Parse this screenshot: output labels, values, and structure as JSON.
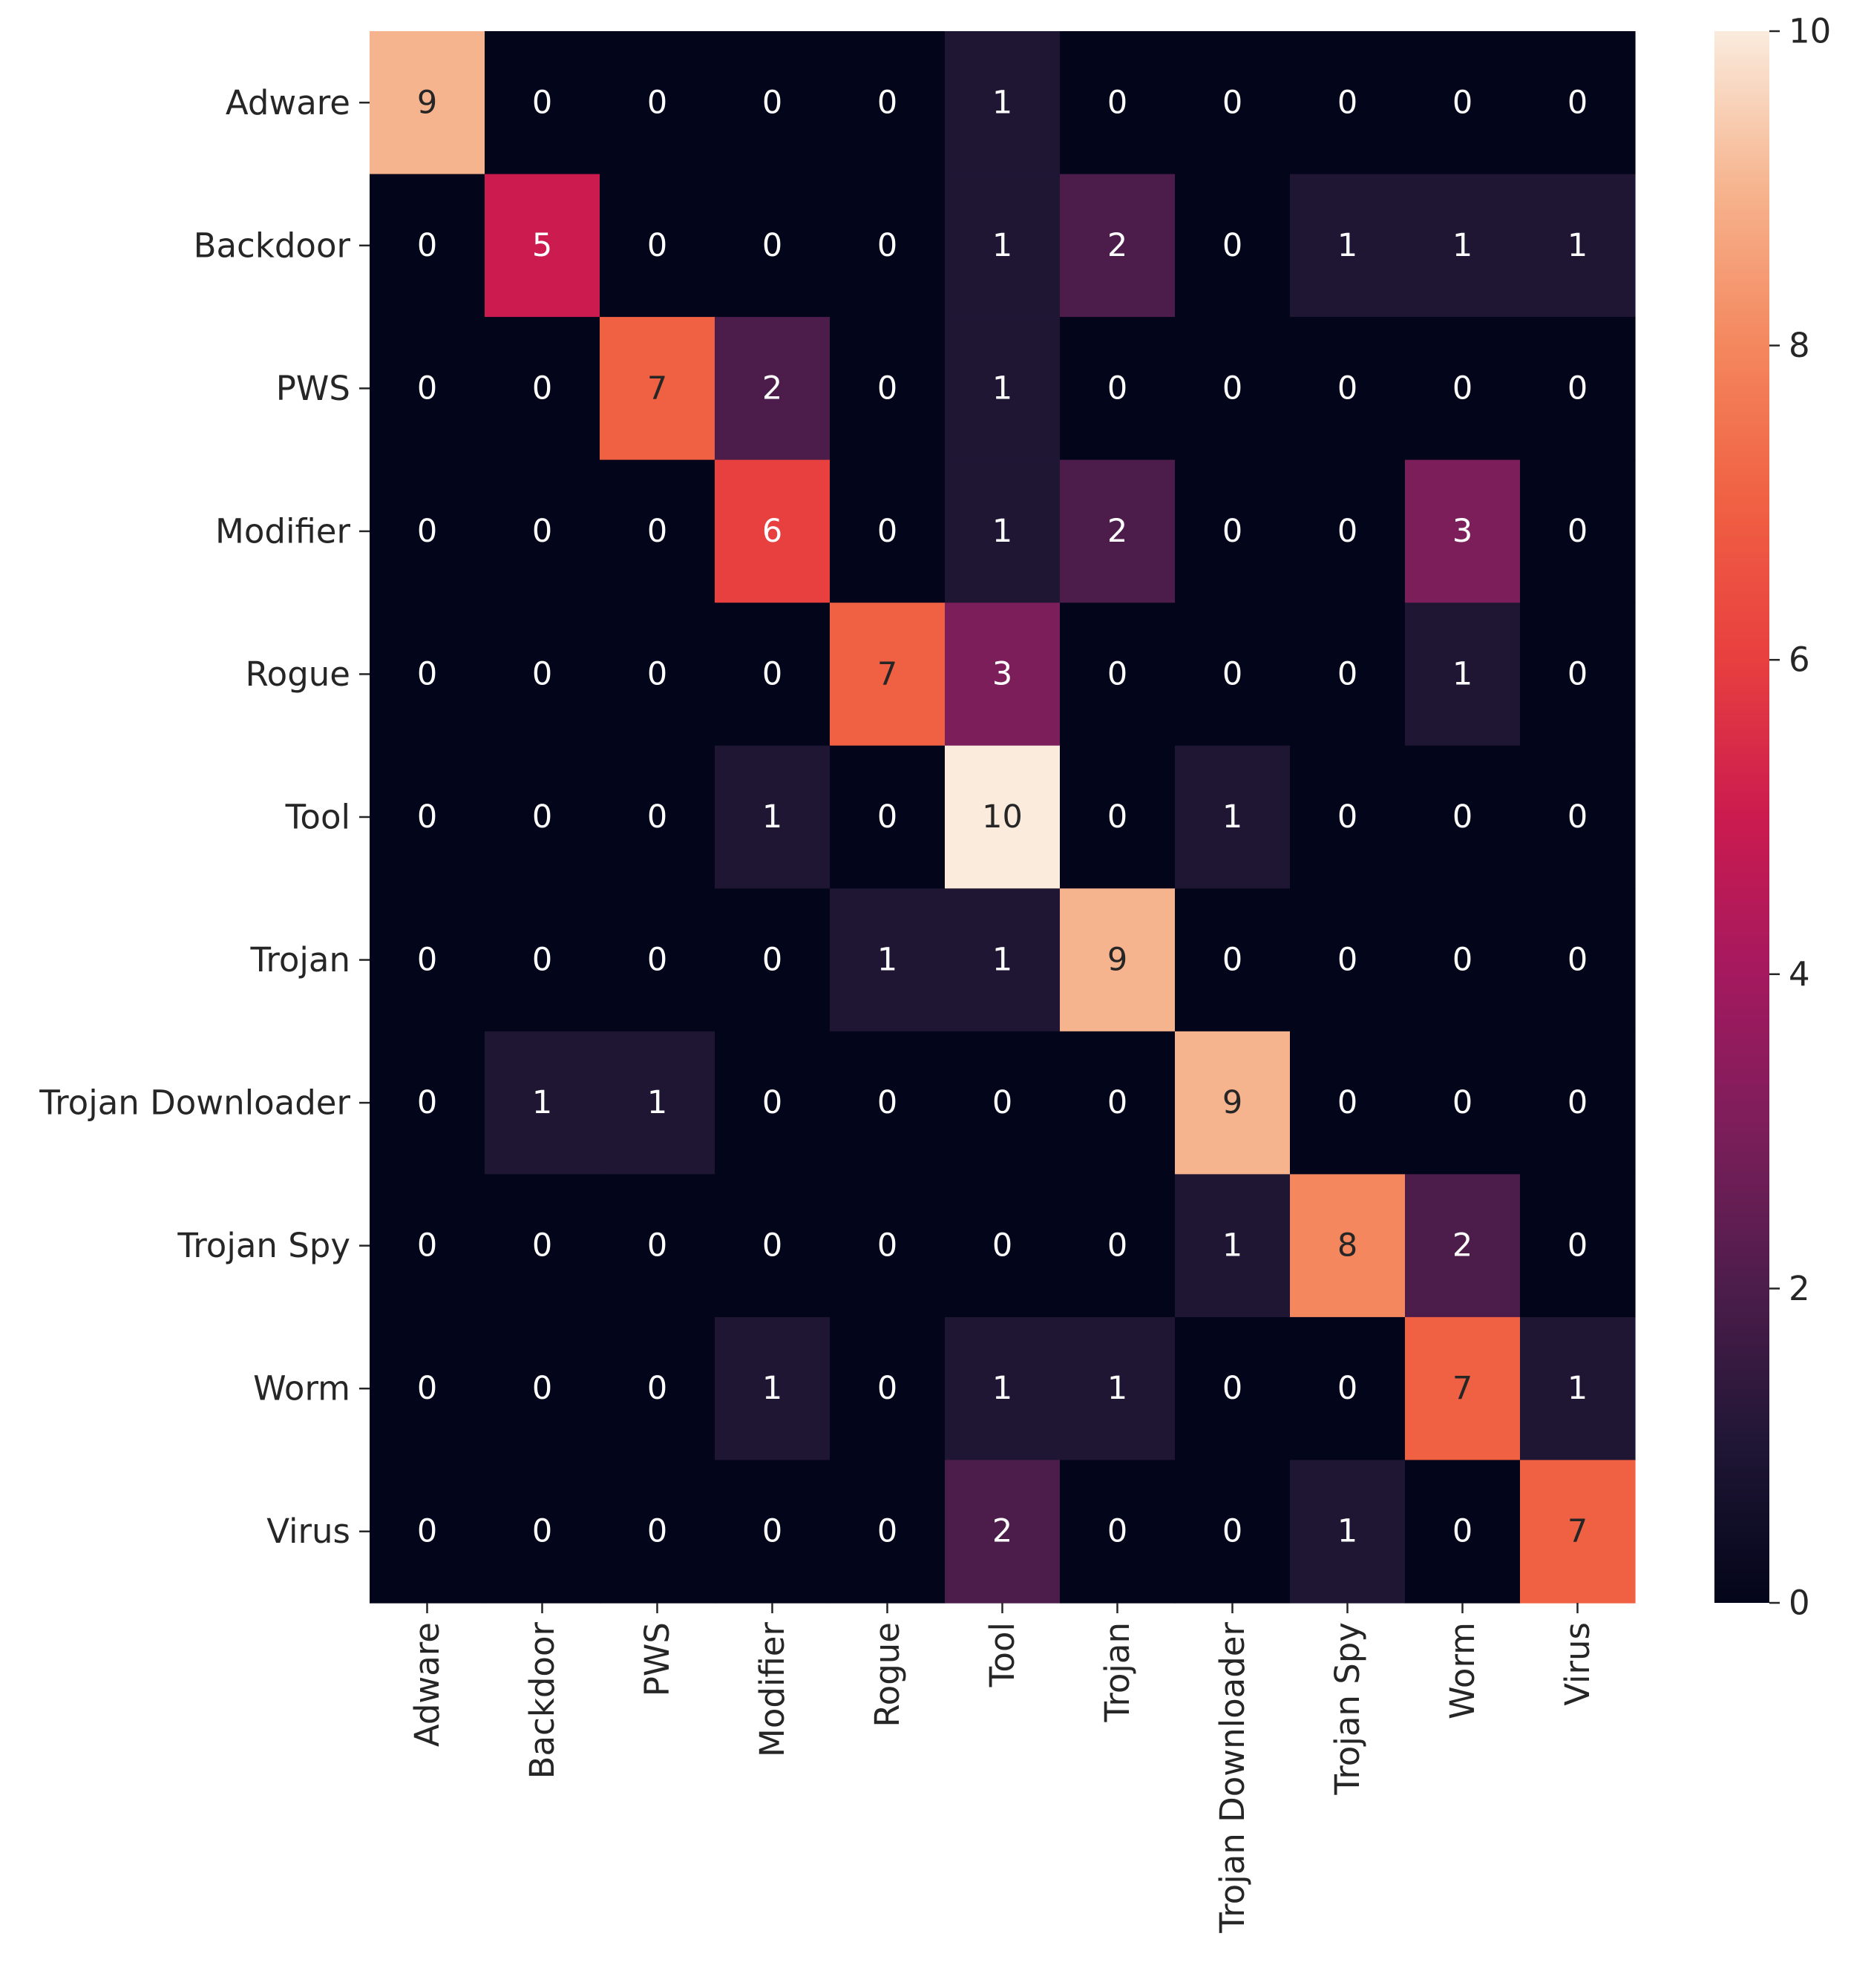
{
  "chart_data": {
    "type": "heatmap",
    "x_categories": [
      "Adware",
      "Backdoor",
      "PWS",
      "Modifier",
      "Rogue",
      "Tool",
      "Trojan",
      "Trojan Downloader",
      "Trojan Spy",
      "Worm",
      "Virus"
    ],
    "y_categories": [
      "Adware",
      "Backdoor",
      "PWS",
      "Modifier",
      "Rogue",
      "Tool",
      "Trojan",
      "Trojan Downloader",
      "Trojan Spy",
      "Worm",
      "Virus"
    ],
    "values": [
      [
        9,
        0,
        0,
        0,
        0,
        1,
        0,
        0,
        0,
        0,
        0
      ],
      [
        0,
        5,
        0,
        0,
        0,
        1,
        2,
        0,
        1,
        1,
        1
      ],
      [
        0,
        0,
        7,
        2,
        0,
        1,
        0,
        0,
        0,
        0,
        0
      ],
      [
        0,
        0,
        0,
        6,
        0,
        1,
        2,
        0,
        0,
        3,
        0
      ],
      [
        0,
        0,
        0,
        0,
        7,
        3,
        0,
        0,
        0,
        1,
        0
      ],
      [
        0,
        0,
        0,
        1,
        0,
        10,
        0,
        1,
        0,
        0,
        0
      ],
      [
        0,
        0,
        0,
        0,
        1,
        1,
        9,
        0,
        0,
        0,
        0
      ],
      [
        0,
        1,
        1,
        0,
        0,
        0,
        0,
        9,
        0,
        0,
        0
      ],
      [
        0,
        0,
        0,
        0,
        0,
        0,
        0,
        1,
        8,
        2,
        0
      ],
      [
        0,
        0,
        0,
        1,
        0,
        1,
        1,
        0,
        0,
        7,
        1
      ],
      [
        0,
        0,
        0,
        0,
        0,
        2,
        0,
        0,
        1,
        0,
        7
      ]
    ],
    "value_range": [
      0,
      10
    ],
    "colorbar_ticks": [
      "0",
      "2",
      "4",
      "6",
      "8",
      "10"
    ],
    "colormap": "rocket",
    "colorbar_position": "right",
    "annotated": true,
    "grid": false
  }
}
